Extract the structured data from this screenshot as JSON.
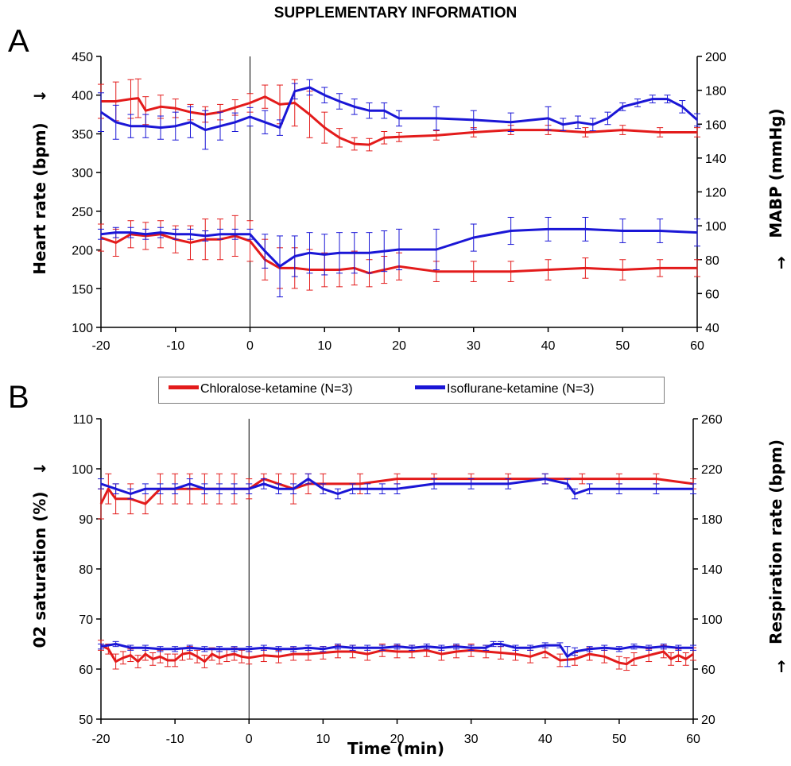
{
  "title": "SUPPLEMENTARY INFORMATION",
  "panel_letters": [
    "A",
    "B"
  ],
  "colors": {
    "chloralose": "#e31b1b",
    "isoflurane": "#1a16d6",
    "axis": "#000000",
    "legend_border": "#7f7f7f"
  },
  "legend": {
    "placement": "between panels, centered",
    "items": [
      {
        "label": "Chloralose-ketamine (N=3)",
        "color": "#e31b1b"
      },
      {
        "label": "Isoflurane-ketamine (N=3)",
        "color": "#1a16d6"
      }
    ]
  },
  "annotations": {
    "arrow_right": "→",
    "arrow_up": "↑"
  },
  "chart_data": [
    {
      "panel": "A",
      "type": "line",
      "xlabel": "",
      "ylabel": "Heart rate (bpm)",
      "y2label": "MABP (mmHg)",
      "xlim": [
        -20,
        60
      ],
      "ylim": [
        100,
        450
      ],
      "y2lim": [
        40,
        200
      ],
      "xticks": [
        "-20",
        "-10",
        "0",
        "10",
        "20",
        "30",
        "40",
        "50",
        "60"
      ],
      "yticks": [
        "100",
        "150",
        "200",
        "250",
        "300",
        "350",
        "400",
        "450"
      ],
      "y2ticks": [
        "40",
        "60",
        "80",
        "100",
        "120",
        "140",
        "160",
        "180",
        "200"
      ],
      "vline_x": 0,
      "grid": false,
      "series": [
        {
          "name": "Chloralose-ketamine (N=3)",
          "measure": "Heart rate (bpm)",
          "axis": "left",
          "color": "#e31b1b",
          "x": [
            -20,
            -18,
            -16,
            -15,
            -14,
            -12,
            -10,
            -8,
            -6,
            -4,
            -2,
            0,
            2,
            4,
            6,
            8,
            10,
            12,
            14,
            16,
            18,
            20,
            25,
            30,
            35,
            40,
            45,
            50,
            55,
            60
          ],
          "y": [
            392,
            392,
            395,
            396,
            380,
            385,
            383,
            378,
            375,
            378,
            384,
            390,
            398,
            388,
            390,
            375,
            358,
            345,
            337,
            336,
            345,
            346,
            348,
            352,
            355,
            355,
            352,
            355,
            352,
            352
          ],
          "err": [
            22,
            25,
            25,
            25,
            18,
            15,
            12,
            10,
            10,
            10,
            10,
            12,
            15,
            25,
            30,
            30,
            20,
            12,
            8,
            8,
            8,
            6,
            6,
            6,
            6,
            6,
            6,
            6,
            6,
            6
          ]
        },
        {
          "name": "Isoflurane-ketamine (N=3)",
          "measure": "Heart rate (bpm)",
          "axis": "left",
          "color": "#1a16d6",
          "x": [
            -20,
            -18,
            -16,
            -14,
            -12,
            -10,
            -8,
            -6,
            -4,
            -2,
            0,
            2,
            4,
            6,
            8,
            10,
            12,
            14,
            16,
            18,
            20,
            25,
            30,
            35,
            40,
            42,
            44,
            46,
            48,
            50,
            52,
            54,
            56,
            58,
            60
          ],
          "y": [
            378,
            365,
            360,
            360,
            358,
            360,
            365,
            355,
            360,
            365,
            372,
            365,
            358,
            405,
            410,
            400,
            392,
            385,
            380,
            380,
            370,
            370,
            368,
            365,
            370,
            362,
            365,
            362,
            370,
            385,
            390,
            395,
            395,
            385,
            368
          ],
          "err": [
            25,
            22,
            15,
            15,
            15,
            18,
            20,
            25,
            18,
            12,
            12,
            15,
            10,
            10,
            10,
            10,
            10,
            10,
            10,
            10,
            10,
            15,
            12,
            12,
            15,
            8,
            8,
            8,
            8,
            5,
            5,
            5,
            5,
            8,
            8
          ]
        },
        {
          "name": "Chloralose-ketamine (N=3)",
          "measure": "MABP (mmHg)",
          "axis": "right",
          "color": "#e31b1b",
          "x": [
            -20,
            -18,
            -16,
            -14,
            -12,
            -10,
            -8,
            -6,
            -4,
            -2,
            0,
            2,
            4,
            6,
            8,
            10,
            12,
            14,
            16,
            18,
            20,
            25,
            30,
            35,
            40,
            45,
            50,
            55,
            60
          ],
          "y": [
            93,
            90,
            95,
            94,
            95,
            92,
            90,
            92,
            92,
            94,
            91,
            80,
            75,
            75,
            74,
            74,
            74,
            75,
            72,
            74,
            76,
            73,
            73,
            73,
            74,
            75,
            74,
            75,
            75
          ],
          "err": [
            8,
            8,
            8,
            8,
            8,
            8,
            10,
            12,
            12,
            12,
            12,
            12,
            12,
            12,
            12,
            10,
            10,
            10,
            8,
            8,
            8,
            6,
            6,
            6,
            6,
            6,
            6,
            5,
            5
          ]
        },
        {
          "name": "Isoflurane-ketamine (N=3)",
          "measure": "MABP (mmHg)",
          "axis": "right",
          "color": "#1a16d6",
          "x": [
            -20,
            -18,
            -16,
            -14,
            -12,
            -10,
            -8,
            -6,
            -4,
            -2,
            0,
            2,
            4,
            6,
            8,
            10,
            12,
            14,
            16,
            18,
            20,
            25,
            30,
            35,
            40,
            45,
            50,
            55,
            60
          ],
          "y": [
            95,
            96,
            96,
            95,
            96,
            95,
            95,
            94,
            95,
            95,
            95,
            85,
            76,
            82,
            84,
            83,
            84,
            84,
            84,
            85,
            86,
            86,
            93,
            97,
            98,
            98,
            97,
            97,
            96
          ],
          "err": [
            3,
            3,
            3,
            3,
            3,
            3,
            3,
            3,
            3,
            3,
            3,
            10,
            18,
            12,
            12,
            12,
            12,
            12,
            12,
            12,
            12,
            12,
            8,
            8,
            7,
            7,
            7,
            7,
            8
          ]
        }
      ]
    },
    {
      "panel": "B",
      "type": "line",
      "xlabel": "Time (min)",
      "ylabel": "02 saturation  (%)",
      "y2label": "Respiration rate (bpm)",
      "xlim": [
        -20,
        60
      ],
      "ylim": [
        50,
        110
      ],
      "y2lim": [
        20,
        260
      ],
      "xticks": [
        "-20",
        "-10",
        "0",
        "10",
        "20",
        "30",
        "40",
        "50",
        "60"
      ],
      "yticks": [
        "50",
        "60",
        "70",
        "80",
        "90",
        "100",
        "110"
      ],
      "y2ticks": [
        "20",
        "60",
        "100",
        "140",
        "180",
        "220",
        "260"
      ],
      "vline_x": 0,
      "grid": false,
      "series": [
        {
          "name": "Chloralose-ketamine (N=3)",
          "measure": "02 saturation (%)",
          "axis": "left",
          "color": "#e31b1b",
          "x": [
            -20,
            -19,
            -18,
            -16,
            -14,
            -12,
            -10,
            -8,
            -6,
            -4,
            -2,
            0,
            2,
            4,
            6,
            8,
            10,
            15,
            20,
            25,
            30,
            35,
            40,
            45,
            50,
            55,
            60
          ],
          "y": [
            93,
            96,
            94,
            94,
            93,
            96,
            96,
            96,
            96,
            96,
            96,
            96,
            98,
            97,
            96,
            97,
            97,
            97,
            98,
            98,
            98,
            98,
            98,
            98,
            98,
            98,
            97
          ],
          "err": [
            3,
            3,
            3,
            3,
            2,
            3,
            3,
            3,
            3,
            3,
            3,
            2,
            1,
            2,
            3,
            2,
            2,
            2,
            1,
            1,
            1,
            1,
            1,
            1,
            1,
            1,
            1
          ]
        },
        {
          "name": "Isoflurane-ketamine (N=3)",
          "measure": "02 saturation (%)",
          "axis": "left",
          "color": "#1a16d6",
          "x": [
            -20,
            -18,
            -16,
            -14,
            -12,
            -10,
            -8,
            -6,
            -4,
            -2,
            0,
            2,
            4,
            6,
            8,
            10,
            12,
            14,
            16,
            18,
            20,
            25,
            30,
            35,
            40,
            43,
            44,
            46,
            50,
            55,
            60
          ],
          "y": [
            97,
            96,
            95,
            96,
            96,
            96,
            97,
            96,
            96,
            96,
            96,
            97,
            96,
            96,
            98,
            96,
            95,
            96,
            96,
            96,
            96,
            97,
            97,
            97,
            98,
            97,
            95,
            96,
            96,
            96,
            96
          ],
          "err": [
            1,
            1,
            1,
            1,
            1,
            1,
            1,
            1,
            1,
            1,
            1,
            1,
            1,
            1,
            1,
            1,
            1,
            1,
            1,
            1,
            1,
            1,
            1,
            1,
            1,
            1,
            1,
            1,
            1,
            1,
            1
          ]
        },
        {
          "name": "Chloralose-ketamine (N=3)",
          "measure": "Respiration rate (bpm)",
          "axis": "right",
          "color": "#e31b1b",
          "x": [
            -20,
            -19,
            -18,
            -17,
            -16,
            -15,
            -14,
            -13,
            -12,
            -11,
            -10,
            -9,
            -8,
            -7,
            -6,
            -5,
            -4,
            -3,
            -2,
            -1,
            0,
            2,
            4,
            6,
            8,
            10,
            12,
            14,
            16,
            18,
            20,
            22,
            24,
            26,
            28,
            30,
            32,
            34,
            36,
            38,
            40,
            42,
            44,
            46,
            48,
            50,
            51,
            52,
            54,
            56,
            57,
            58,
            59,
            60
          ],
          "y": [
            79,
            76,
            66,
            69,
            71,
            66,
            72,
            68,
            70,
            67,
            67,
            72,
            73,
            70,
            66,
            72,
            69,
            71,
            72,
            70,
            69,
            71,
            70,
            72,
            72,
            73,
            74,
            74,
            72,
            75,
            74,
            74,
            75,
            72,
            74,
            75,
            74,
            73,
            72,
            70,
            74,
            67,
            68,
            72,
            70,
            65,
            64,
            68,
            71,
            74,
            68,
            71,
            68,
            72
          ],
          "err": [
            4,
            4,
            6,
            5,
            5,
            5,
            5,
            5,
            5,
            5,
            5,
            5,
            5,
            5,
            5,
            5,
            5,
            5,
            5,
            5,
            5,
            5,
            5,
            5,
            5,
            5,
            5,
            5,
            5,
            5,
            5,
            5,
            5,
            5,
            5,
            5,
            5,
            5,
            5,
            5,
            5,
            5,
            5,
            5,
            5,
            5,
            5,
            5,
            5,
            5,
            5,
            5,
            5,
            5
          ]
        },
        {
          "name": "Isoflurane-ketamine (N=3)",
          "measure": "Respiration rate (bpm)",
          "axis": "right",
          "color": "#1a16d6",
          "x": [
            -20,
            -18,
            -16,
            -14,
            -12,
            -10,
            -8,
            -6,
            -4,
            -2,
            0,
            2,
            4,
            6,
            8,
            10,
            12,
            14,
            16,
            18,
            20,
            22,
            24,
            26,
            28,
            30,
            32,
            33,
            34,
            36,
            38,
            40,
            42,
            43,
            44,
            46,
            48,
            50,
            52,
            54,
            56,
            58,
            60
          ],
          "y": [
            78,
            80,
            77,
            77,
            76,
            76,
            77,
            76,
            76,
            76,
            76,
            77,
            76,
            76,
            77,
            76,
            78,
            77,
            77,
            77,
            78,
            77,
            78,
            77,
            78,
            77,
            77,
            80,
            80,
            77,
            77,
            79,
            79,
            70,
            74,
            76,
            77,
            76,
            78,
            77,
            78,
            77,
            77
          ],
          "err": [
            2,
            2,
            2,
            2,
            2,
            2,
            2,
            2,
            2,
            2,
            2,
            2,
            2,
            2,
            2,
            2,
            2,
            2,
            2,
            2,
            2,
            2,
            2,
            2,
            2,
            2,
            2,
            2,
            2,
            2,
            2,
            2,
            2,
            8,
            3,
            2,
            2,
            2,
            2,
            2,
            2,
            2,
            2
          ]
        }
      ]
    }
  ]
}
